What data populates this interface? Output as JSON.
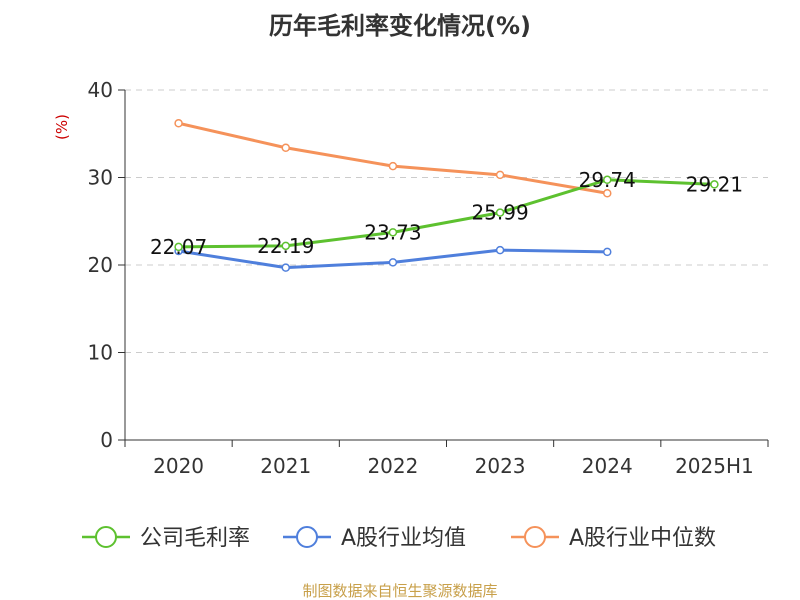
{
  "chart_data": {
    "type": "line",
    "title": "历年毛利率变化情况(%)",
    "ylabel": "(%)",
    "xlabel": "",
    "categories": [
      "2020",
      "2021",
      "2022",
      "2023",
      "2024",
      "2025H1"
    ],
    "ylim": [
      0,
      40
    ],
    "yticks": [
      0,
      10,
      20,
      30,
      40
    ],
    "grid": true,
    "legend_position": "bottom",
    "series": [
      {
        "name": "公司毛利率",
        "color": "#5dc12f",
        "values": [
          22.07,
          22.19,
          23.73,
          25.99,
          29.74,
          29.21
        ],
        "labels": [
          "22.07",
          "22.19",
          "23.73",
          "25.99",
          "29.74",
          "29.21"
        ]
      },
      {
        "name": "A股行业均值",
        "color": "#4f7fdc",
        "values": [
          21.6,
          19.7,
          20.3,
          21.7,
          21.5,
          null
        ]
      },
      {
        "name": "A股行业中位数",
        "color": "#f5925a",
        "values": [
          36.2,
          33.4,
          31.3,
          30.3,
          28.2,
          null
        ]
      }
    ],
    "source": "制图数据来自恒生聚源数据库"
  }
}
